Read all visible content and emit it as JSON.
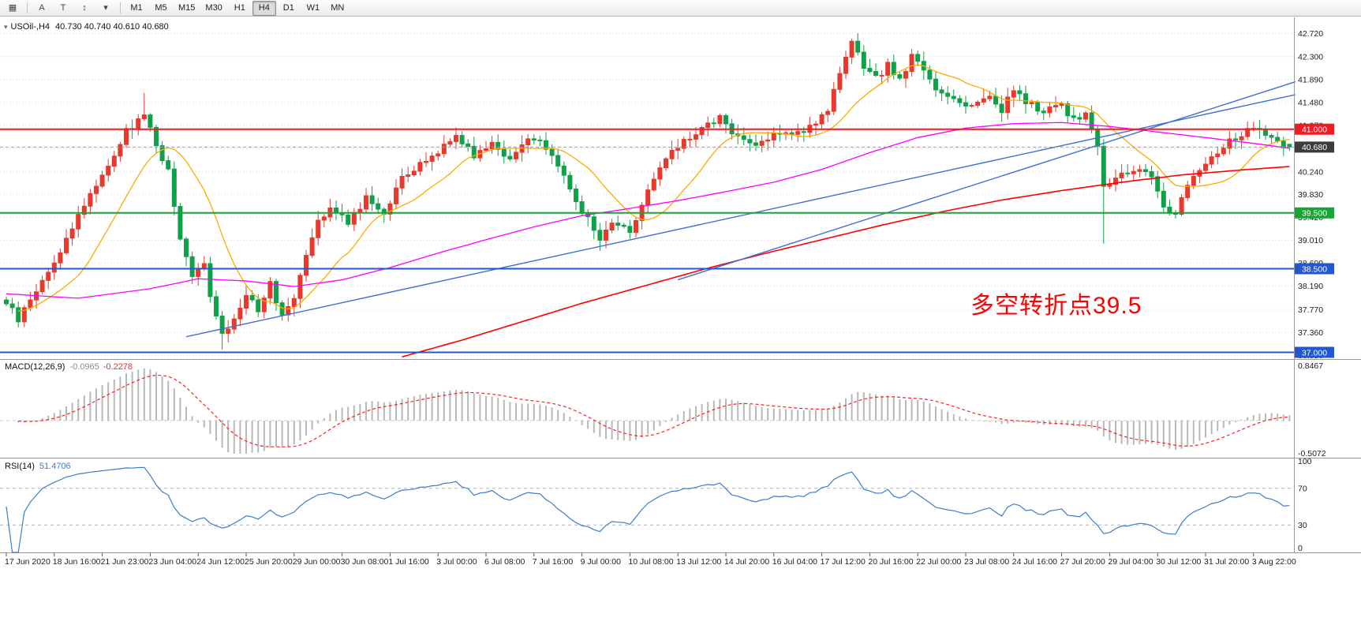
{
  "toolbar": {
    "tools": [
      {
        "name": "chart-grid-icon",
        "glyph": "▦"
      },
      {
        "name": "annotation-letter-icon",
        "glyph": "A"
      },
      {
        "name": "text-tool-icon",
        "glyph": "T"
      },
      {
        "name": "arrows-tool-icon",
        "glyph": "↕"
      },
      {
        "name": "tools-dropdown-icon",
        "glyph": "▾"
      }
    ],
    "timeframes": [
      "M1",
      "M5",
      "M15",
      "M30",
      "H1",
      "H4",
      "D1",
      "W1",
      "MN"
    ],
    "active_timeframe": "H4"
  },
  "chart": {
    "header": {
      "collapse_icon": "▾",
      "symbol": "USOil-,H4",
      "ohlc_text": "40.730 40.740 40.610 40.680"
    },
    "annotation": {
      "text": "多空转折点39.5",
      "color": "#ff0000"
    },
    "price_axis": {
      "tick_labels": [
        "42.720",
        "42.300",
        "41.890",
        "41.480",
        "41.070",
        "40.650",
        "40.240",
        "39.830",
        "39.420",
        "39.010",
        "38.600",
        "38.190",
        "37.770",
        "37.360",
        "36.950"
      ],
      "ticks": [
        42.72,
        42.3,
        41.89,
        41.48,
        41.07,
        40.65,
        40.24,
        39.83,
        39.42,
        39.01,
        38.6,
        38.19,
        37.77,
        37.36,
        36.95
      ],
      "badges": [
        {
          "label": "41.000",
          "price": 41.0,
          "color": "#ef1c24"
        },
        {
          "label": "40.680",
          "price": 40.68,
          "color": "#3c3c3c"
        },
        {
          "label": "39.500",
          "price": 39.5,
          "color": "#18a437"
        },
        {
          "label": "38.500",
          "price": 38.5,
          "color": "#2456cf"
        },
        {
          "label": "37.000",
          "price": 37.0,
          "color": "#2456cf"
        }
      ]
    },
    "levels": [
      {
        "name": "resistance-41000",
        "price": 41.0,
        "color": "#ef1c24",
        "width": 2,
        "dash": null
      },
      {
        "name": "bid-price-line",
        "price": 40.68,
        "color": "#9a9a9a",
        "width": 1,
        "dash": "4 3"
      },
      {
        "name": "support-39500",
        "price": 39.5,
        "color": "#18a437",
        "width": 2,
        "dash": null
      },
      {
        "name": "support-38500",
        "price": 38.5,
        "color": "#2456cf",
        "width": 2,
        "dash": null
      },
      {
        "name": "support-37000",
        "price": 37.0,
        "color": "#2456cf",
        "width": 2,
        "dash": null
      }
    ],
    "trendlines": [
      {
        "name": "uptrend-line-long",
        "from": [
          30,
          37.28
        ],
        "to": [
          215,
          41.62
        ],
        "color": "#3f6fd0"
      },
      {
        "name": "uptrend-line-steep",
        "from": [
          112,
          38.3
        ],
        "to": [
          215,
          41.85
        ],
        "color": "#3f6fd0"
      }
    ],
    "time_axis": {
      "step_candles": 8,
      "labels": [
        "17 Jun 2020",
        "18 Jun 16:00",
        "21 Jun 23:00",
        "23 Jun 04:00",
        "24 Jun 12:00",
        "25 Jun 20:00",
        "29 Jun 00:00",
        "30 Jun 08:00",
        "1 Jul 16:00",
        "3 Jul 00:00",
        "6 Jul 08:00",
        "7 Jul 16:00",
        "9 Jul 00:00",
        "10 Jul 08:00",
        "13 Jul 12:00",
        "14 Jul 20:00",
        "16 Jul 04:00",
        "17 Jul 12:00",
        "20 Jul 16:00",
        "22 Jul 00:00",
        "23 Jul 08:00",
        "24 Jul 16:00",
        "27 Jul 20:00",
        "29 Jul 04:00",
        "30 Jul 12:00",
        "31 Jul 20:00",
        "3 Aug 22:00"
      ]
    }
  },
  "chart_data": {
    "type": "candlestick",
    "title": "USOil-,H4",
    "symbol": "USOil-",
    "timeframe": "H4",
    "bars": 215,
    "price_range": [
      36.88,
      42.92
    ],
    "current_ohlc": {
      "open": 40.73,
      "high": 40.74,
      "low": 40.61,
      "close": 40.68
    },
    "up_color": "#e8392c",
    "down_color": "#0fa14a",
    "close_anchors": [
      [
        0,
        37.9
      ],
      [
        2,
        37.58
      ],
      [
        5,
        38.12
      ],
      [
        8,
        38.6
      ],
      [
        11,
        39.25
      ],
      [
        14,
        39.85
      ],
      [
        17,
        40.35
      ],
      [
        20,
        40.95
      ],
      [
        23,
        41.28
      ],
      [
        25,
        40.72
      ],
      [
        27,
        40.25
      ],
      [
        29,
        39.0
      ],
      [
        31,
        38.35
      ],
      [
        33,
        38.65
      ],
      [
        34,
        37.95
      ],
      [
        36,
        37.28
      ],
      [
        38,
        37.62
      ],
      [
        40,
        38.05
      ],
      [
        42,
        37.78
      ],
      [
        44,
        38.22
      ],
      [
        46,
        37.68
      ],
      [
        48,
        38.02
      ],
      [
        50,
        38.8
      ],
      [
        52,
        39.4
      ],
      [
        54,
        39.58
      ],
      [
        57,
        39.35
      ],
      [
        60,
        39.75
      ],
      [
        63,
        39.52
      ],
      [
        66,
        40.1
      ],
      [
        69,
        40.35
      ],
      [
        72,
        40.62
      ],
      [
        75,
        40.9
      ],
      [
        78,
        40.55
      ],
      [
        81,
        40.75
      ],
      [
        84,
        40.48
      ],
      [
        87,
        40.8
      ],
      [
        90,
        40.7
      ],
      [
        93,
        40.15
      ],
      [
        96,
        39.55
      ],
      [
        99,
        39.02
      ],
      [
        101,
        39.35
      ],
      [
        104,
        39.18
      ],
      [
        107,
        39.9
      ],
      [
        110,
        40.45
      ],
      [
        113,
        40.8
      ],
      [
        116,
        41.0
      ],
      [
        119,
        41.2
      ],
      [
        122,
        40.85
      ],
      [
        125,
        40.7
      ],
      [
        128,
        40.95
      ],
      [
        131,
        40.85
      ],
      [
        134,
        41.05
      ],
      [
        137,
        41.35
      ],
      [
        139,
        41.95
      ],
      [
        141,
        42.55
      ],
      [
        143,
        42.1
      ],
      [
        145,
        41.9
      ],
      [
        147,
        42.15
      ],
      [
        149,
        41.88
      ],
      [
        151,
        42.3
      ],
      [
        153,
        42.05
      ],
      [
        155,
        41.72
      ],
      [
        158,
        41.55
      ],
      [
        161,
        41.42
      ],
      [
        164,
        41.6
      ],
      [
        166,
        41.35
      ],
      [
        168,
        41.7
      ],
      [
        170,
        41.48
      ],
      [
        173,
        41.32
      ],
      [
        176,
        41.45
      ],
      [
        178,
        41.15
      ],
      [
        180,
        41.3
      ],
      [
        182,
        40.7
      ],
      [
        183,
        39.95
      ],
      [
        185,
        40.1
      ],
      [
        188,
        40.3
      ],
      [
        191,
        40.15
      ],
      [
        193,
        39.62
      ],
      [
        195,
        39.45
      ],
      [
        197,
        40.05
      ],
      [
        200,
        40.4
      ],
      [
        203,
        40.7
      ],
      [
        206,
        40.9
      ],
      [
        208,
        41.0
      ],
      [
        210,
        40.88
      ],
      [
        212,
        40.73
      ],
      [
        214,
        40.68
      ]
    ],
    "forced_extremes": {
      "23": {
        "high": 41.65
      },
      "36": {
        "low": 37.05
      },
      "99": {
        "low": 38.82
      },
      "142": {
        "high": 42.72
      },
      "183": {
        "low": 38.95
      }
    },
    "moving_averages": [
      {
        "name": "ma-fast-orange",
        "type": "sma",
        "period": 13,
        "color": "#ffaa00"
      },
      {
        "name": "ma-medium-magenta",
        "color": "#ff00ff",
        "anchors": [
          [
            0,
            38.05
          ],
          [
            12,
            37.97
          ],
          [
            24,
            38.14
          ],
          [
            32,
            38.32
          ],
          [
            40,
            38.28
          ],
          [
            48,
            38.18
          ],
          [
            56,
            38.3
          ],
          [
            64,
            38.52
          ],
          [
            72,
            38.78
          ],
          [
            80,
            39.02
          ],
          [
            88,
            39.25
          ],
          [
            96,
            39.45
          ],
          [
            104,
            39.58
          ],
          [
            112,
            39.72
          ],
          [
            120,
            39.88
          ],
          [
            128,
            40.05
          ],
          [
            136,
            40.28
          ],
          [
            144,
            40.58
          ],
          [
            152,
            40.85
          ],
          [
            160,
            41.02
          ],
          [
            168,
            41.1
          ],
          [
            176,
            41.12
          ],
          [
            184,
            41.05
          ],
          [
            192,
            40.95
          ],
          [
            200,
            40.85
          ],
          [
            207,
            40.76
          ],
          [
            214,
            40.66
          ]
        ]
      },
      {
        "name": "ma-slow-red",
        "color": "#ff0000",
        "anchors": [
          [
            66,
            36.92
          ],
          [
            76,
            37.22
          ],
          [
            86,
            37.55
          ],
          [
            96,
            37.88
          ],
          [
            106,
            38.18
          ],
          [
            116,
            38.48
          ],
          [
            126,
            38.76
          ],
          [
            136,
            39.02
          ],
          [
            146,
            39.28
          ],
          [
            156,
            39.52
          ],
          [
            166,
            39.73
          ],
          [
            176,
            39.9
          ],
          [
            186,
            40.05
          ],
          [
            196,
            40.18
          ],
          [
            206,
            40.27
          ],
          [
            214,
            40.33
          ]
        ]
      }
    ],
    "indicators": {
      "macd": {
        "label": "MACD(12,26,9)",
        "main_value": "-0.0965",
        "signal_value": "-0.2278",
        "fast": 12,
        "slow": 26,
        "signal": 9,
        "scale_max": 0.8467,
        "scale_min": -0.5072,
        "scale_max_label": "0.8467",
        "scale_min_label": "-0.5072",
        "histogram_color": "#b8b8b8",
        "signal_color": "#ff2020"
      },
      "rsi": {
        "label": "RSI(14)",
        "value": "51.4706",
        "period": 14,
        "levels": [
          70,
          30
        ],
        "range": [
          0,
          100
        ],
        "scale_labels": [
          {
            "v": 100,
            "text": "100"
          },
          {
            "v": 70,
            "text": "70"
          },
          {
            "v": 30,
            "text": "30"
          },
          {
            "v": 0,
            "text": "0"
          }
        ],
        "line_color": "#3d7dc8"
      }
    }
  }
}
